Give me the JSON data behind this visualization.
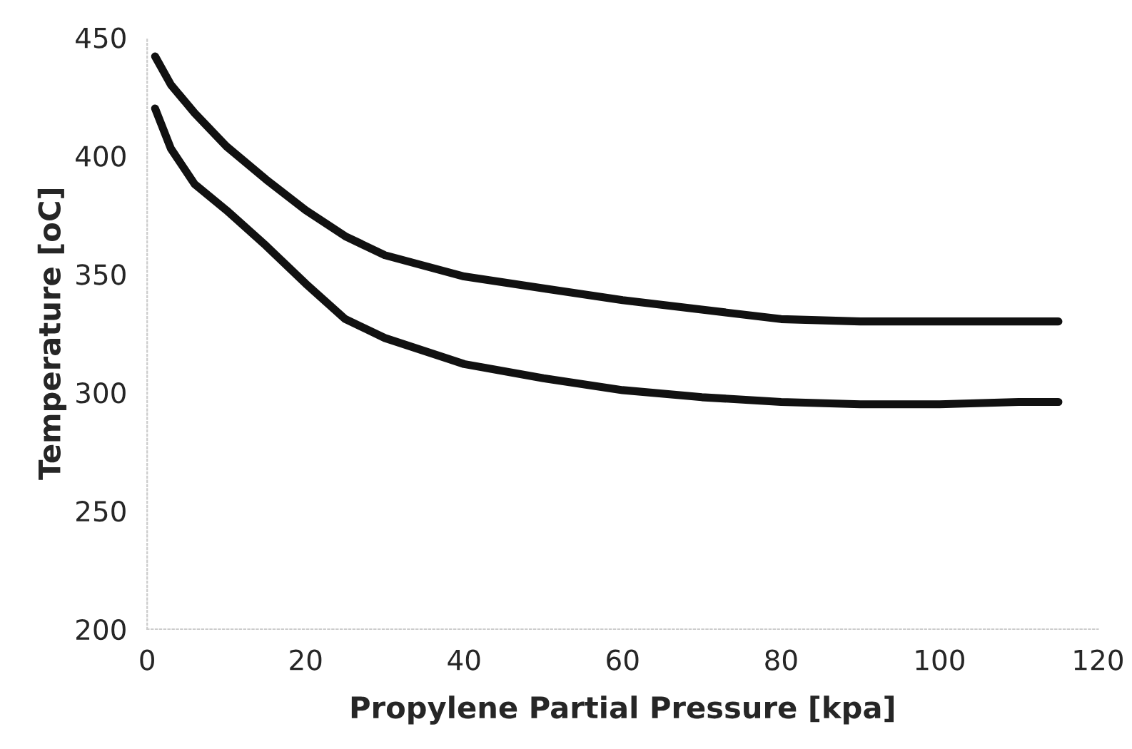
{
  "chart_data": {
    "type": "line",
    "xlabel": "Propylene Partial Pressure [kpa]",
    "ylabel": "Temperature [oC]",
    "xlim": [
      0,
      120
    ],
    "xticks": [
      0,
      20,
      40,
      60,
      80,
      100,
      120
    ],
    "ylim": [
      200,
      450
    ],
    "yticks": [
      200,
      250,
      300,
      350,
      400,
      450
    ],
    "grid": false,
    "line_style": "solid",
    "series": [
      {
        "color": "#111111",
        "x": [
          1,
          3,
          6,
          10,
          15,
          20,
          25,
          30,
          40,
          50,
          60,
          70,
          80,
          90,
          100,
          110,
          115
        ],
        "values": [
          442,
          430,
          418,
          404,
          390,
          377,
          366,
          358,
          349,
          344,
          339,
          335,
          331,
          330,
          330,
          330,
          330
        ]
      },
      {
        "color": "#111111",
        "x": [
          1,
          3,
          6,
          10,
          15,
          20,
          25,
          30,
          40,
          50,
          60,
          70,
          80,
          90,
          100,
          110,
          115
        ],
        "values": [
          420,
          403,
          388,
          377,
          362,
          346,
          331,
          323,
          312,
          306,
          301,
          298,
          296,
          295,
          295,
          296,
          296
        ]
      }
    ]
  }
}
